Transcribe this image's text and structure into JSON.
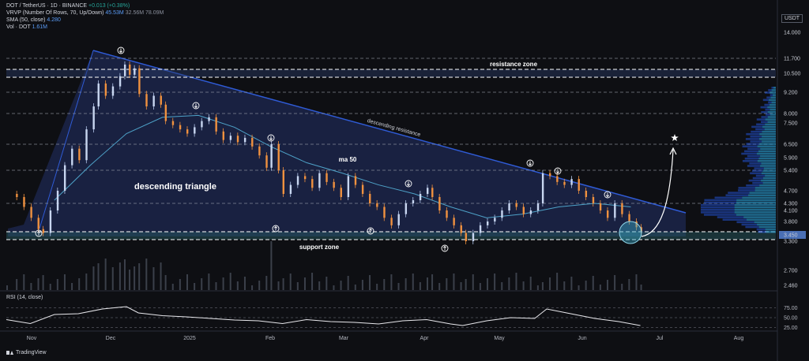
{
  "header": {
    "symbol": "DOT / TetherUS · 1D · BINANCE",
    "change": "+0.013 (+0.38%)",
    "vrvp": "VRVP (Number Of Rows, 70, Up/Down)",
    "vrvp_vals": "45.53M",
    "vrvp_vals_dim": "32.56M  78.09M",
    "sma": "SMA (50, close)",
    "sma_val": "4.280",
    "vol": "Vol · DOT",
    "vol_val": "1.61M",
    "currency": "USDT"
  },
  "rsi": {
    "title": "RSI (14, close)",
    "ticks": [
      "75.00",
      "50.00",
      "25.00"
    ]
  },
  "branding": "TradingView",
  "chart_data": {
    "type": "candlestick",
    "price_ticks": [
      14.0,
      11.7,
      10.5,
      9.2,
      8.0,
      7.5,
      6.5,
      5.9,
      5.4,
      4.7,
      4.3,
      4.1,
      3.8,
      3.45,
      3.3,
      2.7,
      2.46
    ],
    "price_tick_labels": [
      "14.000",
      "11.700",
      "10.500",
      "9.200",
      "8.000",
      "7.500",
      "6.500",
      "5.900",
      "5.400",
      "4.700",
      "4.300",
      "4.100",
      "3.800",
      "3.450",
      "3.300",
      "2.700",
      "2.460"
    ],
    "highlighted_tick": "3.450",
    "x_labels": [
      "Nov",
      "Dec",
      "2025",
      "Feb",
      "Mar",
      "Apr",
      "May",
      "Jun",
      "Jul",
      "Aug"
    ],
    "annotations": {
      "resistance_zone": "resistance zone",
      "support_zone": "support zone",
      "descending_resistance": "descending resistance",
      "ma50": "ma 50",
      "pattern": "descending triangle"
    },
    "price_path": [
      [
        0,
        4.6
      ],
      [
        4,
        4.5
      ],
      [
        7,
        4.2
      ],
      [
        10,
        3.9
      ],
      [
        13,
        3.6
      ],
      [
        15,
        3.5
      ],
      [
        18,
        4.1
      ],
      [
        21,
        4.7
      ],
      [
        24,
        5.6
      ],
      [
        27,
        6.3
      ],
      [
        30,
        5.8
      ],
      [
        33,
        7.2
      ],
      [
        36,
        8.4
      ],
      [
        38,
        9.8
      ],
      [
        41,
        9.0
      ],
      [
        44,
        9.6
      ],
      [
        47,
        10.3
      ],
      [
        49,
        11.2
      ],
      [
        51,
        10.4
      ],
      [
        53,
        10.9
      ],
      [
        55,
        9.1
      ],
      [
        58,
        8.4
      ],
      [
        61,
        9.0
      ],
      [
        64,
        8.5
      ],
      [
        66,
        7.6
      ],
      [
        69,
        7.4
      ],
      [
        72,
        7.2
      ],
      [
        75,
        7.0
      ],
      [
        78,
        7.3
      ],
      [
        81,
        7.6
      ],
      [
        84,
        7.8
      ],
      [
        87,
        7.1
      ],
      [
        90,
        6.7
      ],
      [
        93,
        6.9
      ],
      [
        96,
        6.6
      ],
      [
        99,
        6.8
      ],
      [
        102,
        6.4
      ],
      [
        105,
        6.0
      ],
      [
        108,
        5.5
      ],
      [
        110,
        6.5
      ],
      [
        113,
        5.4
      ],
      [
        115,
        4.6
      ],
      [
        118,
        4.9
      ],
      [
        121,
        5.2
      ],
      [
        124,
        5.1
      ],
      [
        127,
        4.8
      ],
      [
        130,
        5.3
      ],
      [
        133,
        5.0
      ],
      [
        136,
        4.8
      ],
      [
        139,
        4.5
      ],
      [
        142,
        5.2
      ],
      [
        145,
        4.9
      ],
      [
        148,
        4.6
      ],
      [
        151,
        4.3
      ],
      [
        154,
        4.2
      ],
      [
        157,
        3.9
      ],
      [
        160,
        3.7
      ],
      [
        163,
        4.0
      ],
      [
        166,
        4.3
      ],
      [
        169,
        4.4
      ],
      [
        172,
        4.6
      ],
      [
        175,
        4.8
      ],
      [
        177,
        4.5
      ],
      [
        180,
        4.1
      ],
      [
        183,
        3.9
      ],
      [
        186,
        3.7
      ],
      [
        189,
        3.5
      ],
      [
        191,
        3.3
      ],
      [
        194,
        3.5
      ],
      [
        197,
        3.7
      ],
      [
        200,
        3.8
      ],
      [
        203,
        3.9
      ],
      [
        206,
        4.1
      ],
      [
        209,
        4.3
      ],
      [
        212,
        4.2
      ],
      [
        215,
        4.0
      ],
      [
        218,
        4.1
      ],
      [
        221,
        4.3
      ],
      [
        223,
        5.3
      ],
      [
        226,
        5.2
      ],
      [
        229,
        5.0
      ],
      [
        232,
        4.9
      ],
      [
        235,
        5.1
      ],
      [
        238,
        4.7
      ],
      [
        241,
        4.5
      ],
      [
        244,
        4.3
      ],
      [
        247,
        4.1
      ],
      [
        250,
        3.9
      ],
      [
        253,
        4.3
      ],
      [
        256,
        4.0
      ],
      [
        259,
        3.8
      ],
      [
        262,
        3.65
      ],
      [
        264,
        3.55
      ]
    ],
    "sma50": [
      [
        20,
        4.4
      ],
      [
        35,
        5.6
      ],
      [
        50,
        7.0
      ],
      [
        65,
        7.8
      ],
      [
        80,
        7.9
      ],
      [
        95,
        7.3
      ],
      [
        110,
        6.4
      ],
      [
        125,
        5.7
      ],
      [
        140,
        5.3
      ],
      [
        155,
        4.9
      ],
      [
        170,
        4.6
      ],
      [
        185,
        4.2
      ],
      [
        200,
        3.9
      ],
      [
        215,
        4.0
      ],
      [
        230,
        4.2
      ],
      [
        245,
        4.3
      ],
      [
        260,
        4.2
      ]
    ],
    "rsi_values": [
      [
        0,
        45
      ],
      [
        10,
        35
      ],
      [
        20,
        58
      ],
      [
        30,
        60
      ],
      [
        40,
        72
      ],
      [
        50,
        78
      ],
      [
        55,
        62
      ],
      [
        65,
        55
      ],
      [
        75,
        52
      ],
      [
        85,
        48
      ],
      [
        95,
        44
      ],
      [
        105,
        42
      ],
      [
        115,
        35
      ],
      [
        125,
        45
      ],
      [
        135,
        40
      ],
      [
        145,
        38
      ],
      [
        155,
        34
      ],
      [
        165,
        42
      ],
      [
        175,
        45
      ],
      [
        185,
        34
      ],
      [
        190,
        30
      ],
      [
        200,
        42
      ],
      [
        210,
        50
      ],
      [
        220,
        48
      ],
      [
        225,
        72
      ],
      [
        235,
        60
      ],
      [
        245,
        48
      ],
      [
        255,
        40
      ],
      [
        264,
        30
      ]
    ]
  }
}
